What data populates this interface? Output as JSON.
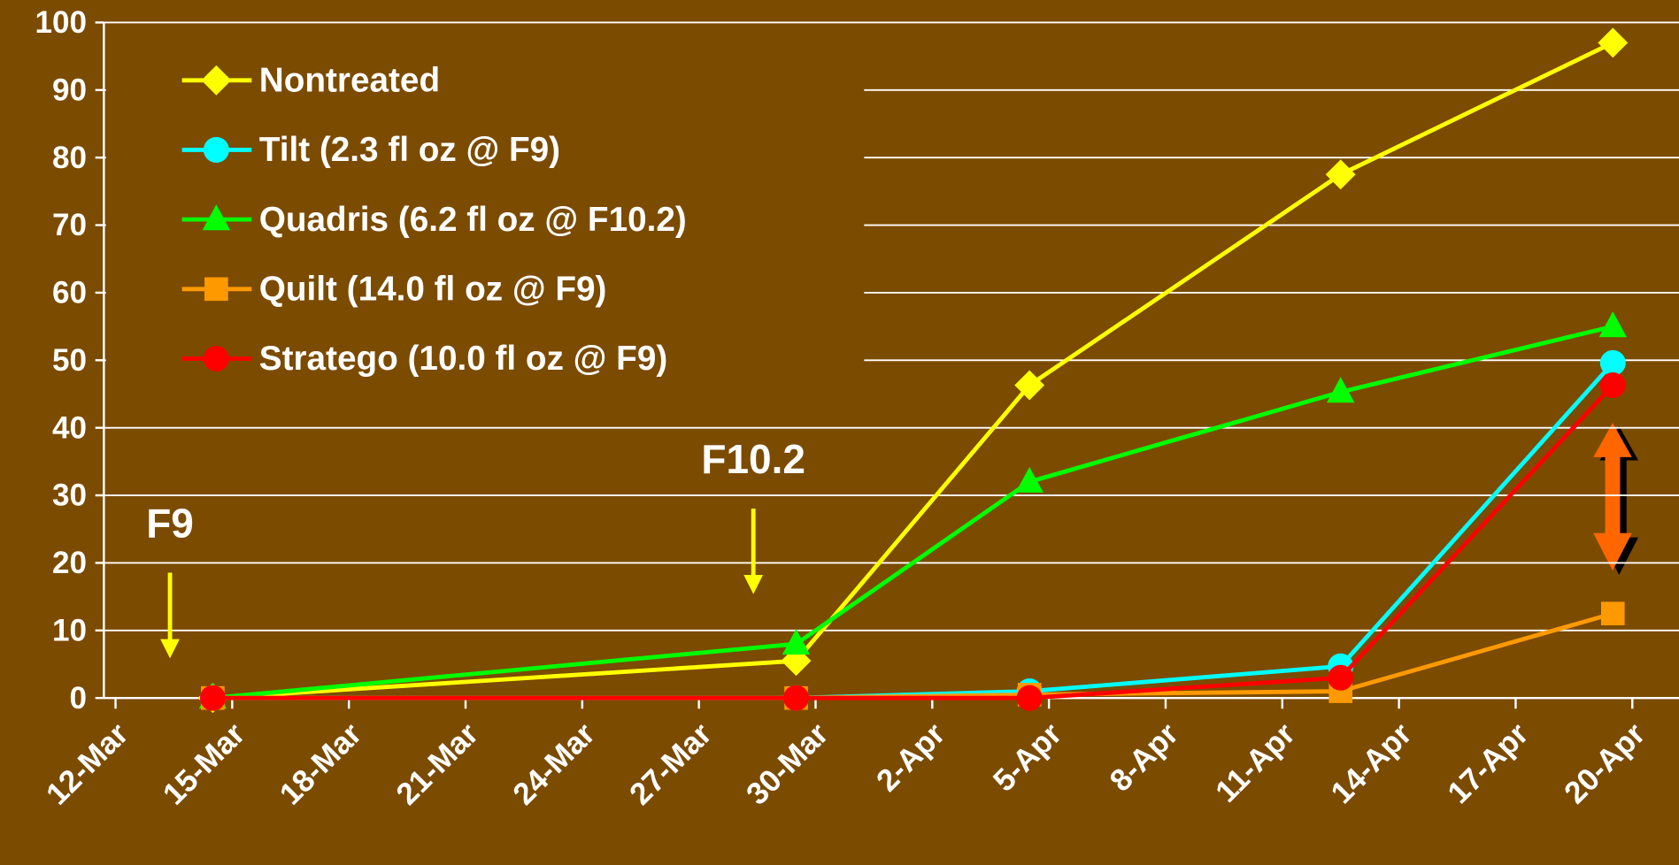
{
  "chart_data": {
    "type": "line",
    "x": [
      2.5,
      17.5,
      23.5,
      31.5,
      38.5
    ],
    "series": [
      {
        "name": "Nontreated",
        "color": "#ffff00",
        "marker": "diamond",
        "values": [
          0,
          5.5,
          46.3,
          77.5,
          97
        ]
      },
      {
        "name": "Tilt (2.3 fl oz @ F9)",
        "color": "#00ffff",
        "marker": "circle",
        "values": [
          0,
          0,
          1,
          4.7,
          49.6
        ]
      },
      {
        "name": "Quadris (6.2 fl oz @ F10.2)",
        "color": "#00ff00",
        "marker": "triangle",
        "values": [
          0,
          8,
          32,
          45.3,
          55
        ]
      },
      {
        "name": "Quilt (14.0 fl oz @ F9)",
        "color": "#ff9900",
        "marker": "square",
        "values": [
          0,
          0,
          0.5,
          1,
          12.5
        ]
      },
      {
        "name": "Stratego (10.0 fl oz @ F9)",
        "color": "#ff0000",
        "marker": "circle",
        "values": [
          0,
          0,
          0,
          3,
          46.3
        ]
      }
    ],
    "xlim": [
      -0.3,
      40.2
    ],
    "xticks": [
      {
        "value": 0,
        "label": "12-Mar"
      },
      {
        "value": 3,
        "label": "15-Mar"
      },
      {
        "value": 6,
        "label": "18-Mar"
      },
      {
        "value": 9,
        "label": "21-Mar"
      },
      {
        "value": 12,
        "label": "24-Mar"
      },
      {
        "value": 15,
        "label": "27-Mar"
      },
      {
        "value": 18,
        "label": "30-Mar"
      },
      {
        "value": 21,
        "label": "2-Apr"
      },
      {
        "value": 24,
        "label": "5-Apr"
      },
      {
        "value": 27,
        "label": "8-Apr"
      },
      {
        "value": 30,
        "label": "11-Apr"
      },
      {
        "value": 33,
        "label": "14-Apr"
      },
      {
        "value": 36,
        "label": "17-Apr"
      },
      {
        "value": 39,
        "label": "20-Apr"
      }
    ],
    "ylim": [
      0,
      100
    ],
    "yticks": [
      0,
      10,
      20,
      30,
      40,
      50,
      60,
      70,
      80,
      90,
      100
    ],
    "grid": true,
    "legend": "upper left",
    "annotations": [
      {
        "text": "F9",
        "x": 1.4
      },
      {
        "text": "F10.2",
        "x": 16.4
      }
    ]
  }
}
